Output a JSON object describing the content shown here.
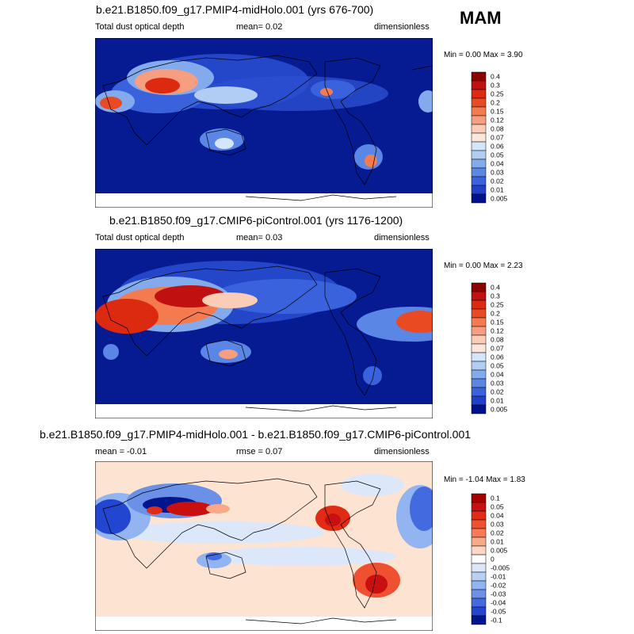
{
  "season": "MAM",
  "panels": [
    {
      "title": "b.e21.B1850.f09_g17.PMIP4-midHolo.001 (yrs 676-700)",
      "variable": "Total dust optical depth",
      "mean": "mean=   0.02",
      "units": "dimensionless",
      "minmax": "Min =   0.00 Max =   3.90",
      "levels": [
        "0.4",
        "0.3",
        "0.25",
        "0.2",
        "0.15",
        "0.12",
        "0.08",
        "0.07",
        "0.06",
        "0.05",
        "0.04",
        "0.03",
        "0.02",
        "0.01",
        "0.005"
      ]
    },
    {
      "title": "b.e21.B1850.f09_g17.CMIP6-piControl.001 (yrs 1176-1200)",
      "variable": "Total dust optical depth",
      "mean": "mean=   0.03",
      "units": "dimensionless",
      "minmax": "Min =   0.00 Max =   2.23",
      "levels": [
        "0.4",
        "0.3",
        "0.25",
        "0.2",
        "0.15",
        "0.12",
        "0.08",
        "0.07",
        "0.06",
        "0.05",
        "0.04",
        "0.03",
        "0.02",
        "0.01",
        "0.005"
      ]
    },
    {
      "title": "b.e21.B1850.f09_g17.PMIP4-midHolo.001 - b.e21.B1850.f09_g17.CMIP6-piControl.001",
      "variable": "mean =  -0.01",
      "mean": "rmse =   0.07",
      "units": "dimensionless",
      "minmax": "Min =  -1.04 Max =   1.83",
      "levels": [
        "0.1",
        "0.05",
        "0.04",
        "0.03",
        "0.02",
        "0.01",
        "0.005",
        "0",
        "-0.005",
        "-0.01",
        "-0.02",
        "-0.03",
        "-0.04",
        "-0.05",
        "-0.1"
      ]
    }
  ],
  "colors": {
    "abs_scale": [
      "#8b0000",
      "#c01010",
      "#dc2a10",
      "#ea4a22",
      "#f47a50",
      "#f79e80",
      "#fbccb6",
      "#fce6dc",
      "#d6e6fa",
      "#b1cdf4",
      "#84aaee",
      "#5a86e6",
      "#3a62dc",
      "#2040cc",
      "#00118c"
    ],
    "diff_scale": [
      "#a80000",
      "#c81010",
      "#e02c14",
      "#ef5030",
      "#f67a58",
      "#f9a888",
      "#fdd6c6",
      "#ffffff",
      "#dce8fa",
      "#b8d0f6",
      "#92b4f0",
      "#6a90e8",
      "#446ae0",
      "#2246d0",
      "#00158e"
    ]
  }
}
